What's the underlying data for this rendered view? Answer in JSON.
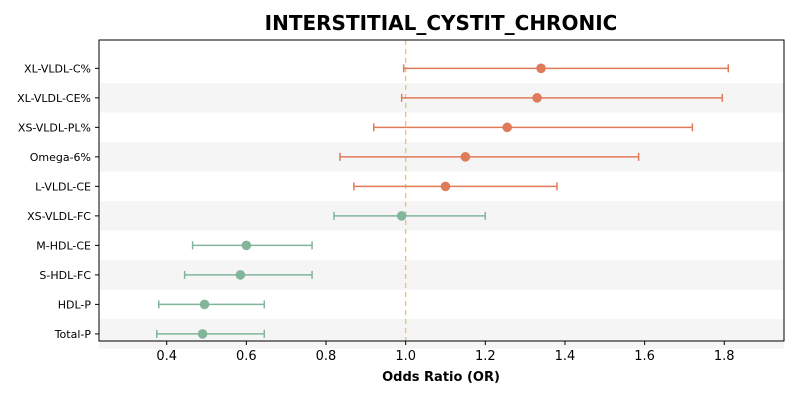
{
  "chart_data": {
    "type": "forest",
    "title": "INTERSTITIAL_CYSTIT_CHRONIC",
    "xlabel": "Odds Ratio (OR)",
    "ylabel": "",
    "xlim": [
      0.23,
      1.95
    ],
    "xticks": [
      0.4,
      0.6,
      0.8,
      1.0,
      1.2,
      1.4,
      1.6,
      1.8
    ],
    "xtick_labels": [
      "0.4",
      "0.6",
      "0.8",
      "1.0",
      "1.2",
      "1.4",
      "1.6",
      "1.8"
    ],
    "reference_line": 1.0,
    "grid": false,
    "alternating_row_shading": true,
    "colors": {
      "positive": "#e07b5a",
      "negative": "#82b59a",
      "reference": "#f0c080",
      "stripe": "#f5f5f5"
    },
    "items": [
      {
        "label": "XL-VLDL-C%",
        "or": 1.34,
        "lower": 0.995,
        "upper": 1.81,
        "group": "positive"
      },
      {
        "label": "XL-VLDL-CE%",
        "or": 1.33,
        "lower": 0.99,
        "upper": 1.795,
        "group": "positive"
      },
      {
        "label": "XS-VLDL-PL%",
        "or": 1.255,
        "lower": 0.92,
        "upper": 1.72,
        "group": "positive"
      },
      {
        "label": "Omega-6%",
        "or": 1.15,
        "lower": 0.835,
        "upper": 1.585,
        "group": "positive"
      },
      {
        "label": "L-VLDL-CE",
        "or": 1.1,
        "lower": 0.87,
        "upper": 1.38,
        "group": "positive"
      },
      {
        "label": "XS-VLDL-FC",
        "or": 0.99,
        "lower": 0.82,
        "upper": 1.2,
        "group": "negative"
      },
      {
        "label": "M-HDL-CE",
        "or": 0.6,
        "lower": 0.465,
        "upper": 0.765,
        "group": "negative"
      },
      {
        "label": "S-HDL-FC",
        "or": 0.585,
        "lower": 0.445,
        "upper": 0.765,
        "group": "negative"
      },
      {
        "label": "HDL-P",
        "or": 0.495,
        "lower": 0.38,
        "upper": 0.645,
        "group": "negative"
      },
      {
        "label": "Total-P",
        "or": 0.49,
        "lower": 0.375,
        "upper": 0.645,
        "group": "negative"
      }
    ]
  }
}
